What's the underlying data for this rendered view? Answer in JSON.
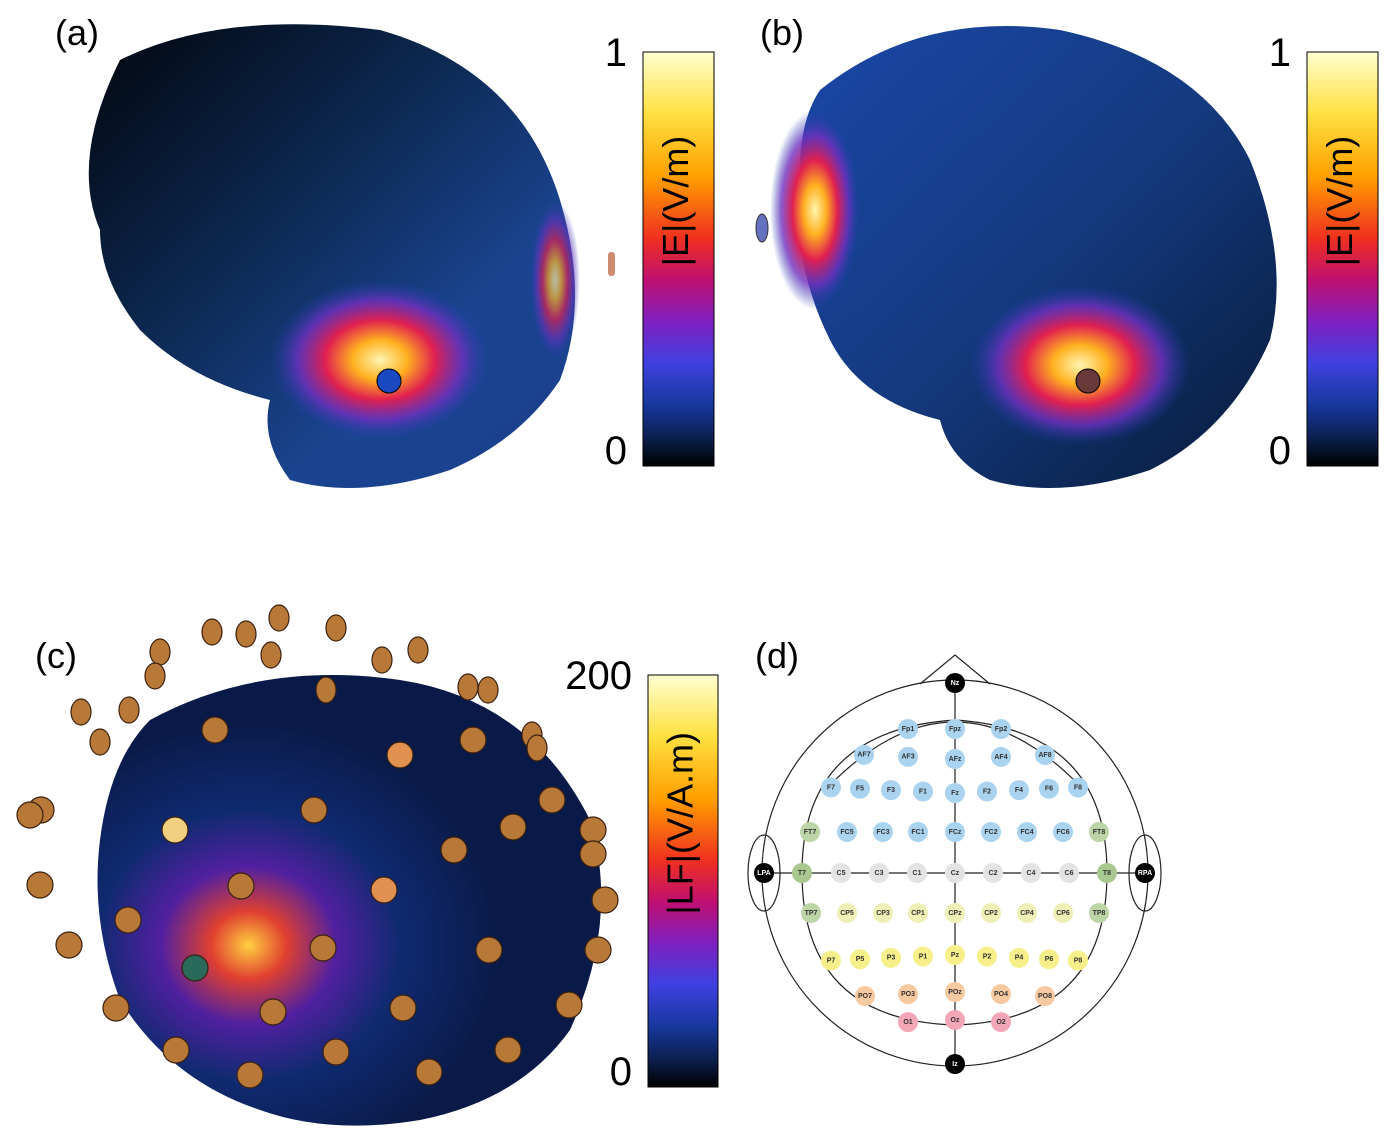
{
  "panels": [
    {
      "label": "(a)",
      "colorbar": {
        "title": "|E|(V/m)",
        "ticks": [
          0,
          1
        ]
      }
    },
    {
      "label": "(b)",
      "colorbar": {
        "title": "|E|(V/m)",
        "ticks": [
          0,
          1
        ]
      }
    },
    {
      "label": "(c)",
      "colorbar": {
        "title": "|LF|(V/A.m)",
        "ticks": [
          0,
          200
        ]
      }
    },
    {
      "label": "(d)"
    }
  ],
  "montage": {
    "landmarks": [
      "Nz",
      "LPA",
      "RPA",
      "Iz"
    ],
    "rows": [
      [
        "Fp1",
        "Fpz",
        "Fp2"
      ],
      [
        "AF7",
        "AF3",
        "AFz",
        "AF4",
        "AF8"
      ],
      [
        "F7",
        "F5",
        "F3",
        "F1",
        "Fz",
        "F2",
        "F4",
        "F6",
        "F8"
      ],
      [
        "FT7",
        "FC5",
        "FC3",
        "FC1",
        "FCz",
        "FC2",
        "FC4",
        "FC6",
        "FT8"
      ],
      [
        "T7",
        "C5",
        "C3",
        "C1",
        "Cz",
        "C2",
        "C4",
        "C6",
        "T8"
      ],
      [
        "TP7",
        "CP5",
        "CP3",
        "CP1",
        "CPz",
        "CP2",
        "CP4",
        "CP6",
        "TP8"
      ],
      [
        "P7",
        "P5",
        "P3",
        "P1",
        "Pz",
        "P2",
        "P4",
        "P6",
        "P8"
      ],
      [
        "PO7",
        "PO3",
        "POz",
        "PO4",
        "PO8"
      ],
      [
        "O1",
        "Oz",
        "O2"
      ]
    ]
  }
}
